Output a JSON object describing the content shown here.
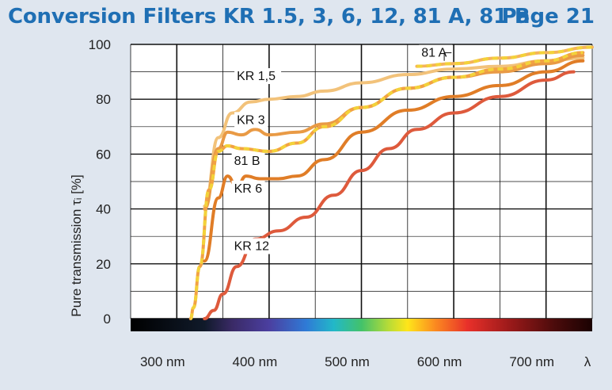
{
  "header": {
    "title": "Conversion Filters KR 1.5, 3, 6, 12, 81 A, 81 B",
    "page": "Page 21"
  },
  "chart_data": {
    "type": "line",
    "title": "Conversion Filters KR 1.5, 3, 6, 12, 81 A, 81 B",
    "xlabel": "λ",
    "ylabel": "Pure transmission τᵢ [%]",
    "xlim": [
      250,
      750
    ],
    "ylim": [
      0,
      100
    ],
    "x_ticks": [
      {
        "value": 300,
        "label": "300 nm"
      },
      {
        "value": 400,
        "label": "400 nm"
      },
      {
        "value": 500,
        "label": "500 nm"
      },
      {
        "value": 600,
        "label": "600 nm"
      },
      {
        "value": 700,
        "label": "700 nm"
      }
    ],
    "x_axis_symbol": "λ",
    "y_ticks": [
      0,
      20,
      40,
      60,
      80,
      100
    ],
    "grid": true,
    "series": [
      {
        "name": "KR 1,5",
        "color": "#f2c27a",
        "dashed": false,
        "label_pos": [
          365,
          87
        ],
        "points": [
          [
            330,
            41
          ],
          [
            345,
            66
          ],
          [
            360,
            75
          ],
          [
            380,
            79
          ],
          [
            400,
            80
          ],
          [
            430,
            81
          ],
          [
            460,
            83
          ],
          [
            500,
            86
          ],
          [
            550,
            89
          ],
          [
            600,
            91
          ],
          [
            650,
            92
          ],
          [
            700,
            94
          ],
          [
            740,
            95
          ]
        ]
      },
      {
        "name": "KR 3",
        "color": "#e99a45",
        "dashed": false,
        "label_pos": [
          365,
          71
        ],
        "points": [
          [
            330,
            40
          ],
          [
            345,
            62
          ],
          [
            355,
            68
          ],
          [
            370,
            67
          ],
          [
            385,
            69
          ],
          [
            400,
            67
          ],
          [
            430,
            68
          ],
          [
            460,
            71
          ],
          [
            500,
            77
          ],
          [
            550,
            84
          ],
          [
            600,
            88
          ],
          [
            650,
            90
          ],
          [
            700,
            93
          ],
          [
            740,
            96
          ]
        ]
      },
      {
        "name": "81 B",
        "color": "#f3d23a",
        "dashed": true,
        "dash_color": "#f2a244",
        "label_pos": [
          362,
          56
        ],
        "points": [
          [
            315,
            0
          ],
          [
            318,
            4
          ],
          [
            325,
            19
          ],
          [
            335,
            47
          ],
          [
            345,
            61
          ],
          [
            355,
            63
          ],
          [
            370,
            62
          ],
          [
            400,
            61
          ],
          [
            430,
            64
          ],
          [
            460,
            70
          ],
          [
            500,
            77
          ],
          [
            550,
            84
          ],
          [
            600,
            88
          ],
          [
            650,
            91
          ],
          [
            700,
            94
          ],
          [
            740,
            97
          ]
        ]
      },
      {
        "name": "KR 6",
        "color": "#e07d27",
        "dashed": false,
        "label_pos": [
          362,
          46
        ],
        "points": [
          [
            330,
            21
          ],
          [
            345,
            44
          ],
          [
            355,
            52
          ],
          [
            365,
            48
          ],
          [
            375,
            52
          ],
          [
            390,
            51
          ],
          [
            410,
            51
          ],
          [
            430,
            52
          ],
          [
            460,
            58
          ],
          [
            500,
            68
          ],
          [
            550,
            76
          ],
          [
            600,
            81
          ],
          [
            650,
            85
          ],
          [
            700,
            90
          ],
          [
            740,
            94
          ]
        ]
      },
      {
        "name": "KR 12",
        "color": "#de5a3c",
        "dashed": false,
        "label_pos": [
          362,
          25
        ],
        "points": [
          [
            330,
            0
          ],
          [
            340,
            3
          ],
          [
            350,
            9
          ],
          [
            365,
            19
          ],
          [
            385,
            29
          ],
          [
            410,
            32
          ],
          [
            440,
            37
          ],
          [
            470,
            45
          ],
          [
            500,
            54
          ],
          [
            530,
            62
          ],
          [
            560,
            69
          ],
          [
            600,
            75
          ],
          [
            650,
            81
          ],
          [
            700,
            87
          ],
          [
            730,
            90
          ]
        ]
      },
      {
        "name": "81 A",
        "color": "#f3d23a",
        "dashed": true,
        "dash_color": "#f5b35a",
        "label_pos": [
          565,
          95.5
        ],
        "points": [
          [
            560,
            92
          ],
          [
            600,
            93
          ],
          [
            650,
            95
          ],
          [
            700,
            97
          ],
          [
            750,
            99
          ]
        ]
      }
    ],
    "spectrum_bar": true,
    "annotations": [
      {
        "text": "81 A",
        "leader_to": [
          600,
          94
        ]
      }
    ]
  }
}
